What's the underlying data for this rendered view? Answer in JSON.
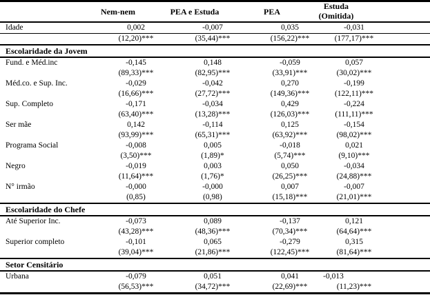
{
  "header": {
    "columns": [
      {
        "label": ""
      },
      {
        "label": "Nem-nem"
      },
      {
        "label": "PEA e Estuda"
      },
      {
        "label": "PEA"
      },
      {
        "label": "Estuda",
        "label2": "(Omitida)"
      }
    ]
  },
  "body": [
    {
      "type": "variable",
      "label": "Idade",
      "rule_after_coef": true,
      "coef": [
        "0,002",
        "-0,007",
        "0,035",
        "-0,031"
      ],
      "tstat": [
        "(12,20)***",
        "(35,44)***",
        "(156,22)***",
        "(177,17)***"
      ]
    },
    {
      "type": "section",
      "label": "Escolaridade da Jovem"
    },
    {
      "type": "variable",
      "label": "Fund. e Méd.inc",
      "coef": [
        "-0,145",
        "0,148",
        "-0,059",
        "0,057"
      ],
      "tstat": [
        "(89,33)***",
        "(82,95)***",
        "(33,91)***",
        "(30,02)***"
      ]
    },
    {
      "type": "variable",
      "label": "Méd.co. e Sup. Inc.",
      "coef": [
        "-0,029",
        "-0,042",
        "0,270",
        "-0,199"
      ],
      "tstat": [
        "(16,66)***",
        "(27,72)***",
        "(149,36)***",
        "(122,11)***"
      ]
    },
    {
      "type": "variable",
      "label": "Sup. Completo",
      "coef": [
        "-0,171",
        "-0,034",
        "0,429",
        "-0,224"
      ],
      "tstat": [
        "(63,40)***",
        "(13,28)***",
        "(126,03)***",
        "(111,11)***"
      ]
    },
    {
      "type": "variable",
      "label": "Ser mãe",
      "coef": [
        "0,142",
        "-0,114",
        "0,125",
        "-0,154"
      ],
      "tstat": [
        "(93,99)***",
        "(65,31)***",
        "(63,92)***",
        "(98,02)***"
      ]
    },
    {
      "type": "variable",
      "label": "Programa Social",
      "coef": [
        "-0,008",
        "0,005",
        "-0,018",
        "0,021"
      ],
      "tstat": [
        "(3,50)***",
        "(1,89)*",
        "(5,74)***",
        "(9,10)***"
      ]
    },
    {
      "type": "variable",
      "label": "Negro",
      "coef": [
        "-0,019",
        "0,003",
        "0,050",
        "-0,034"
      ],
      "tstat": [
        "(11,64)***",
        "(1,76)*",
        "(26,25)***",
        "(24,88)***"
      ]
    },
    {
      "type": "variable",
      "label": "N° irmão",
      "coef": [
        "-0,000",
        "-0,000",
        "0,007",
        "-0,007"
      ],
      "tstat": [
        "(0,85)",
        "(0,98)",
        "(15,18)***",
        "(21,01)***"
      ]
    },
    {
      "type": "section",
      "label": "Escolaridade do Chefe"
    },
    {
      "type": "variable",
      "label": "Até Superior Inc.",
      "coef": [
        "-0,073",
        "0,089",
        "-0,137",
        "0,121"
      ],
      "tstat": [
        "(43,28)***",
        "(48,36)***",
        "(70,34)***",
        "(64,64)***"
      ]
    },
    {
      "type": "variable",
      "label": "Superior completo",
      "coef": [
        "-0,101",
        "0,065",
        "-0,279",
        "0,315"
      ],
      "tstat": [
        "(39,04)***",
        "(21,86)***",
        "(122,45)***",
        "(81,64)***"
      ]
    },
    {
      "type": "section",
      "label": "Setor Censitário"
    },
    {
      "type": "variable",
      "label": "Urbana",
      "coef": [
        "-0,079",
        "0,051",
        "0,041",
        "-0,013"
      ],
      "tstat": [
        "(56,53)***",
        "(34,72)***",
        "(22,69)***",
        "(11,23)***"
      ]
    }
  ]
}
